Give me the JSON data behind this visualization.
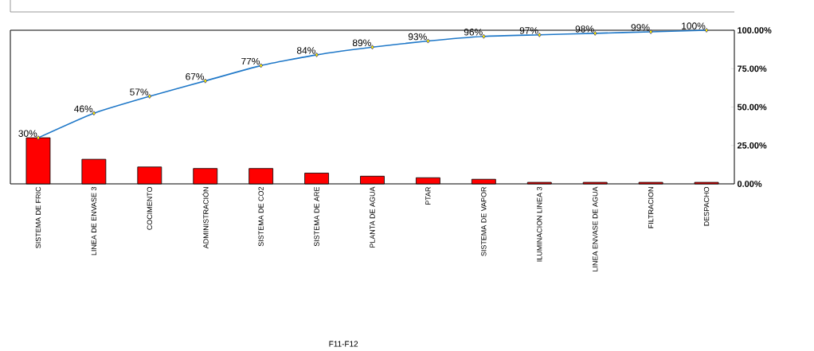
{
  "chart_data": {
    "type": "bar",
    "annotations": [
      "F11-F12"
    ],
    "categories": [
      "SISTEMA DE FRIC",
      "LINEA DE ENVASE 3",
      "COCIMENTO",
      "ADMINISTRACIÓN",
      "SISTEMA DE CO2",
      "SISTEMA DE ARE",
      "PLANTA DE AGUA",
      "PTAR",
      "SISTEMA DE VAPOR",
      "ILUMINACION LINEA 3",
      "LINEA ENVASE DE AGUA",
      "FILTRACION",
      "DESPACHO"
    ],
    "series": [
      {
        "type": "bar",
        "axis": "y2",
        "color": "#ff0000",
        "values": [
          30,
          16,
          11,
          10,
          10,
          7,
          5,
          4,
          3,
          1,
          1,
          1,
          1
        ]
      },
      {
        "type": "line",
        "axis": "y2",
        "color": "#1f78c8",
        "marker": "diamond",
        "line_style": "solid",
        "values": [
          30,
          46,
          57,
          67,
          77,
          84,
          89,
          93,
          96,
          97,
          98,
          99,
          100
        ],
        "value_labels": [
          "30%",
          "46%",
          "57%",
          "67%",
          "77%",
          "84%",
          "89%",
          "93%",
          "96%",
          "97%",
          "98%",
          "99%",
          "100%"
        ]
      }
    ],
    "y2lim": [
      0,
      100
    ],
    "y2ticks": [
      {
        "value": 0,
        "label": "0.00%"
      },
      {
        "value": 25,
        "label": "25.00%"
      },
      {
        "value": 50,
        "label": "50.00%"
      },
      {
        "value": 75,
        "label": "75.00%"
      },
      {
        "value": 100,
        "label": "100.00%"
      }
    ]
  }
}
